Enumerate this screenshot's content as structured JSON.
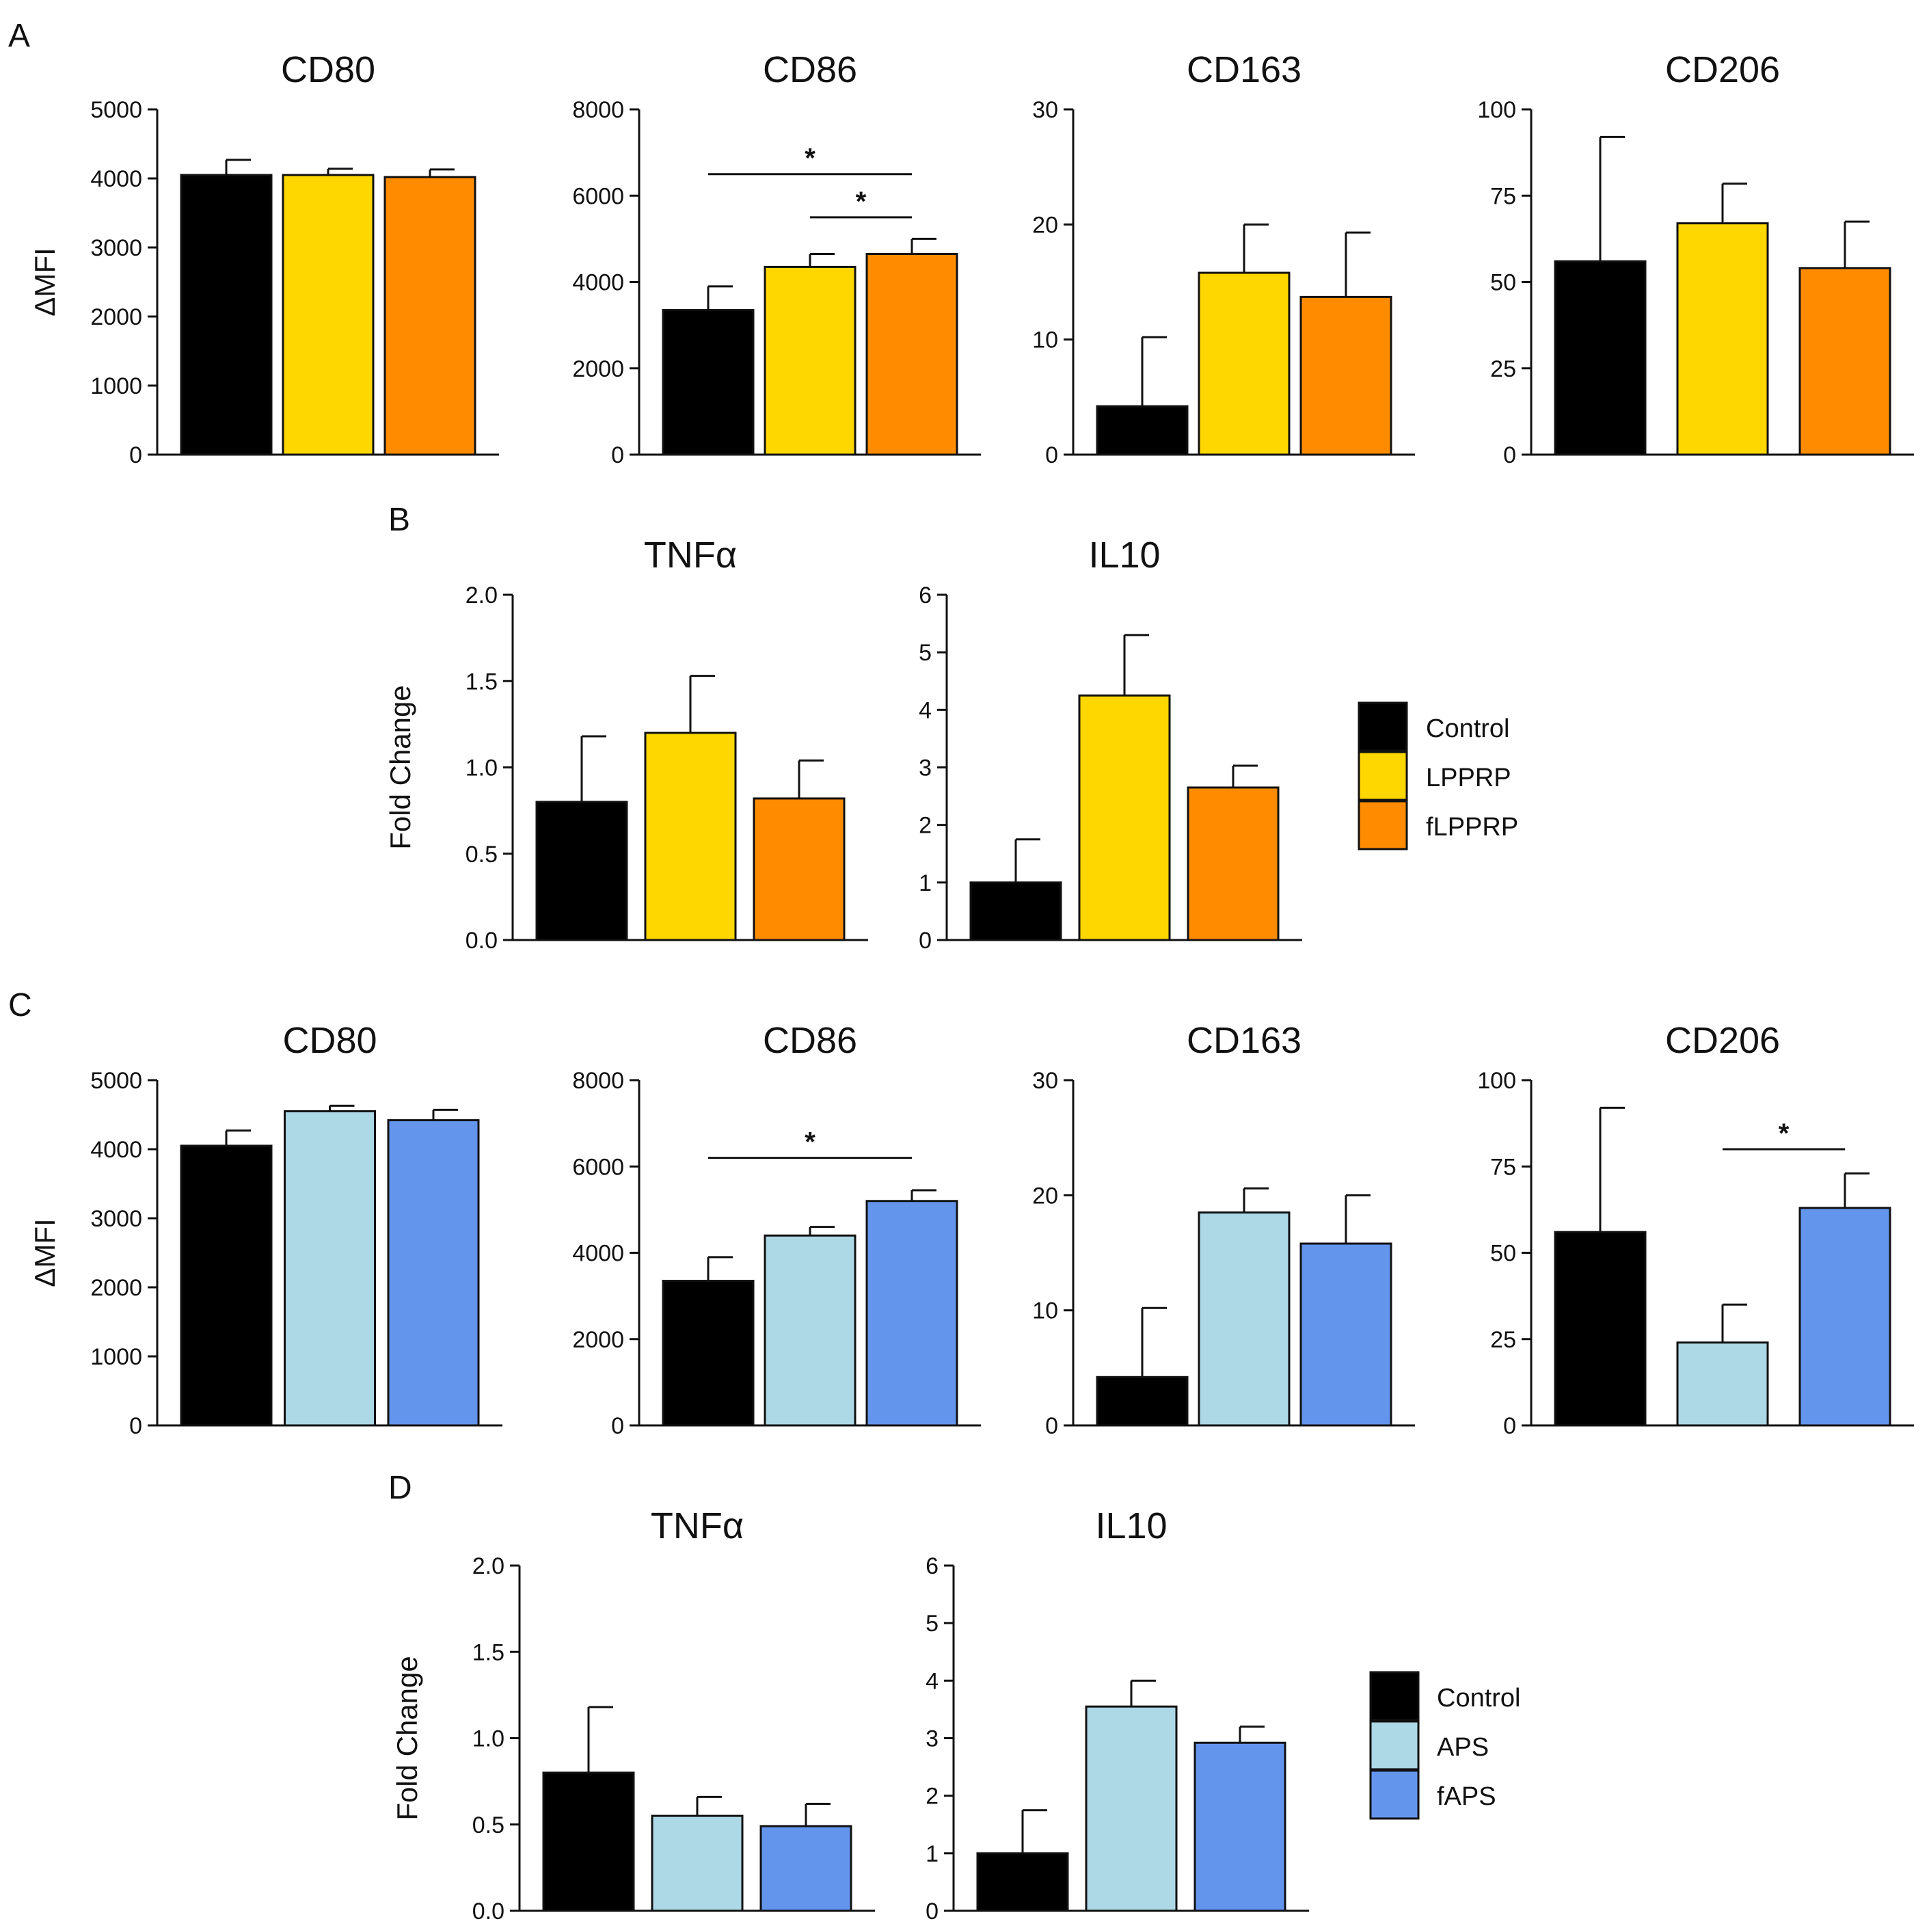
{
  "panel_labels": {
    "A": "A",
    "B": "B",
    "C": "C",
    "D": "D"
  },
  "legends": {
    "B": {
      "items": [
        {
          "label": "Control",
          "color": "#000000"
        },
        {
          "label": "LPPRP",
          "color": "#FFD700"
        },
        {
          "label": "fLPPRP",
          "color": "#FF8C00"
        }
      ]
    },
    "D": {
      "items": [
        {
          "label": "Control",
          "color": "#000000"
        },
        {
          "label": "APS",
          "color": "#ADD8E6"
        },
        {
          "label": "fAPS",
          "color": "#6495ED"
        }
      ]
    }
  },
  "chart_data": [
    {
      "id": "A1",
      "type": "bar",
      "title": "CD80",
      "ylabel": "ΔMFI",
      "ylim": [
        0,
        5000
      ],
      "yticks": [
        "0",
        "1000",
        "2000",
        "3000",
        "4000",
        "5000"
      ],
      "categories": [
        "Control",
        "LPPRP",
        "fLPPRP"
      ],
      "values": [
        4050,
        4050,
        4020
      ],
      "errors": [
        220,
        90,
        110
      ],
      "colors": [
        "#000000",
        "#FFD700",
        "#FF8C00"
      ],
      "significance": []
    },
    {
      "id": "A2",
      "type": "bar",
      "title": "CD86",
      "ylabel": "",
      "ylim": [
        0,
        8000
      ],
      "yticks": [
        "0",
        "2000",
        "4000",
        "6000",
        "8000"
      ],
      "categories": [
        "Control",
        "LPPRP",
        "fLPPRP"
      ],
      "values": [
        3350,
        4350,
        4650
      ],
      "errors": [
        550,
        300,
        350
      ],
      "colors": [
        "#000000",
        "#FFD700",
        "#FF8C00"
      ],
      "significance": [
        {
          "from": 0,
          "to": 2,
          "label": "*",
          "level": 6500
        },
        {
          "from": 1,
          "to": 2,
          "label": "*",
          "level": 5500
        }
      ]
    },
    {
      "id": "A3",
      "type": "bar",
      "title": "CD163",
      "ylabel": "",
      "ylim": [
        0,
        30
      ],
      "yticks": [
        "0",
        "10",
        "20",
        "30"
      ],
      "categories": [
        "Control",
        "LPPRP",
        "fLPPRP"
      ],
      "values": [
        4.2,
        15.8,
        13.7
      ],
      "errors": [
        6,
        4.2,
        5.6
      ],
      "colors": [
        "#000000",
        "#FFD700",
        "#FF8C00"
      ],
      "significance": []
    },
    {
      "id": "A4",
      "type": "bar",
      "title": "CD206",
      "ylabel": "",
      "ylim": [
        0,
        100
      ],
      "yticks": [
        "0",
        "25",
        "50",
        "75",
        "100"
      ],
      "categories": [
        "Control",
        "LPPRP",
        "fLPPRP"
      ],
      "values": [
        56,
        67,
        54
      ],
      "errors": [
        36,
        11.5,
        13.5
      ],
      "colors": [
        "#000000",
        "#FFD700",
        "#FF8C00"
      ],
      "significance": []
    },
    {
      "id": "B1",
      "type": "bar",
      "title": "TNFα",
      "ylabel": "Fold Change",
      "ylim": [
        0,
        2.0
      ],
      "yticks": [
        "0.0",
        "0.5",
        "1.0",
        "1.5",
        "2.0"
      ],
      "categories": [
        "Control",
        "LPPRP",
        "fLPPRP"
      ],
      "values": [
        0.8,
        1.2,
        0.82
      ],
      "errors": [
        0.38,
        0.33,
        0.22
      ],
      "colors": [
        "#000000",
        "#FFD700",
        "#FF8C00"
      ],
      "significance": []
    },
    {
      "id": "B2",
      "type": "bar",
      "title": "IL10",
      "ylabel": "",
      "ylim": [
        0,
        6
      ],
      "yticks": [
        "0",
        "1",
        "2",
        "3",
        "4",
        "5",
        "6"
      ],
      "categories": [
        "Control",
        "LPPRP",
        "fLPPRP"
      ],
      "values": [
        1.0,
        4.25,
        2.65
      ],
      "errors": [
        0.75,
        1.05,
        0.38
      ],
      "colors": [
        "#000000",
        "#FFD700",
        "#FF8C00"
      ],
      "significance": []
    },
    {
      "id": "C1",
      "type": "bar",
      "title": "CD80",
      "ylabel": "ΔMFI",
      "ylim": [
        0,
        5000
      ],
      "yticks": [
        "0",
        "1000",
        "2000",
        "3000",
        "4000",
        "5000"
      ],
      "categories": [
        "Control",
        "APS",
        "fAPS"
      ],
      "values": [
        4050,
        4550,
        4420
      ],
      "errors": [
        220,
        80,
        150
      ],
      "colors": [
        "#000000",
        "#ADD8E6",
        "#6495ED"
      ],
      "significance": []
    },
    {
      "id": "C2",
      "type": "bar",
      "title": "CD86",
      "ylabel": "",
      "ylim": [
        0,
        8000
      ],
      "yticks": [
        "0",
        "2000",
        "4000",
        "6000",
        "8000"
      ],
      "categories": [
        "Control",
        "APS",
        "fAPS"
      ],
      "values": [
        3350,
        4400,
        5200
      ],
      "errors": [
        550,
        200,
        250
      ],
      "colors": [
        "#000000",
        "#ADD8E6",
        "#6495ED"
      ],
      "significance": [
        {
          "from": 0,
          "to": 2,
          "label": "*",
          "level": 6200
        }
      ]
    },
    {
      "id": "C3",
      "type": "bar",
      "title": "CD163",
      "ylabel": "",
      "ylim": [
        0,
        30
      ],
      "yticks": [
        "0",
        "10",
        "20",
        "30"
      ],
      "categories": [
        "Control",
        "APS",
        "fAPS"
      ],
      "values": [
        4.2,
        18.5,
        15.8
      ],
      "errors": [
        6,
        2.1,
        4.2
      ],
      "colors": [
        "#000000",
        "#ADD8E6",
        "#6495ED"
      ],
      "significance": []
    },
    {
      "id": "C4",
      "type": "bar",
      "title": "CD206",
      "ylabel": "",
      "ylim": [
        0,
        100
      ],
      "yticks": [
        "0",
        "25",
        "50",
        "75",
        "100"
      ],
      "categories": [
        "Control",
        "APS",
        "fAPS"
      ],
      "values": [
        56,
        24,
        63
      ],
      "errors": [
        36,
        11,
        10
      ],
      "colors": [
        "#000000",
        "#ADD8E6",
        "#6495ED"
      ],
      "significance": [
        {
          "from": 1,
          "to": 2,
          "label": "*",
          "level": 80
        }
      ]
    },
    {
      "id": "D1",
      "type": "bar",
      "title": "TNFα",
      "ylabel": "Fold Change",
      "ylim": [
        0,
        2.0
      ],
      "yticks": [
        "0.0",
        "0.5",
        "1.0",
        "1.5",
        "2.0"
      ],
      "categories": [
        "Control",
        "APS",
        "fAPS"
      ],
      "values": [
        0.8,
        0.55,
        0.49
      ],
      "errors": [
        0.38,
        0.11,
        0.13
      ],
      "colors": [
        "#000000",
        "#ADD8E6",
        "#6495ED"
      ],
      "significance": []
    },
    {
      "id": "D2",
      "type": "bar",
      "title": "IL10",
      "ylabel": "",
      "ylim": [
        0,
        6
      ],
      "yticks": [
        "0",
        "1",
        "2",
        "3",
        "4",
        "5",
        "6"
      ],
      "categories": [
        "Control",
        "APS",
        "fAPS"
      ],
      "values": [
        1.0,
        3.55,
        2.92
      ],
      "errors": [
        0.75,
        0.45,
        0.28
      ],
      "colors": [
        "#000000",
        "#ADD8E6",
        "#6495ED"
      ],
      "significance": []
    }
  ]
}
